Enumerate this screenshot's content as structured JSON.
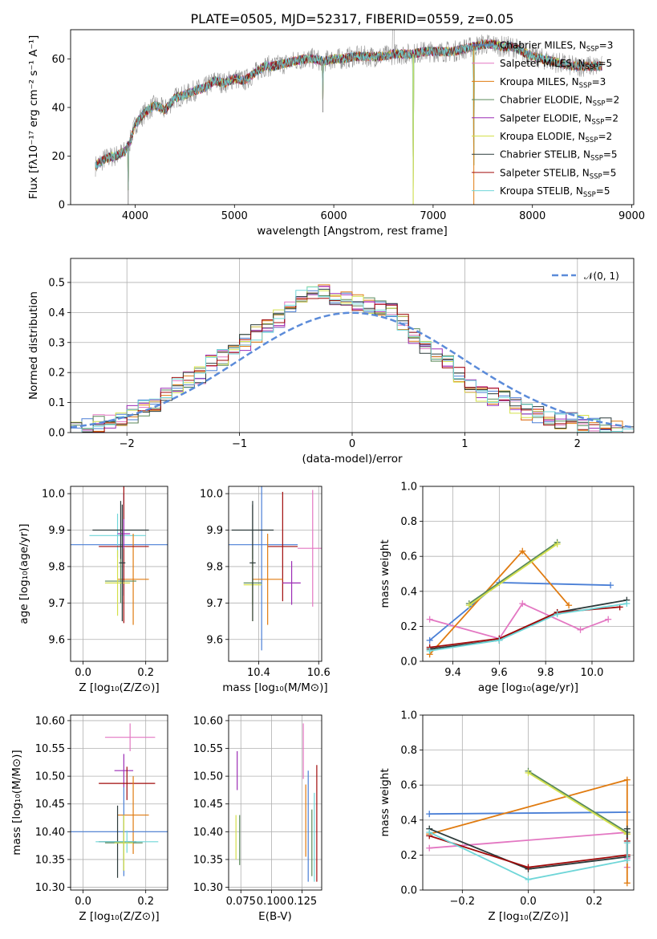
{
  "chart_data": [
    {
      "id": "spectrum",
      "type": "line",
      "title": "PLATE=0505, MJD=52317, FIBERID=0559, z=0.05",
      "xlabel": "wavelength [Angstrom, rest frame]",
      "ylabel": "Flux [fλ10⁻¹⁷ erg cm⁻² s⁻¹ A⁻¹]",
      "xlim": [
        3350,
        9020
      ],
      "ylim": [
        0,
        72
      ],
      "xticks": [
        4000,
        5000,
        6000,
        7000,
        8000,
        9000
      ],
      "yticks": [
        0,
        20,
        40,
        60
      ],
      "continuum": {
        "x": [
          3600,
          3700,
          3800,
          3900,
          3950,
          4000,
          4100,
          4200,
          4300,
          4400,
          4500,
          4600,
          4700,
          4800,
          4900,
          5000,
          5100,
          5200,
          5300,
          5400,
          5500,
          5600,
          5700,
          5800,
          5900,
          6000,
          6100,
          6200,
          6300,
          6400,
          6500,
          6600,
          6700,
          6800,
          6900,
          7000,
          7100,
          7200,
          7300,
          7400,
          7500,
          7600,
          7700,
          7800,
          7900,
          8000,
          8100,
          8200,
          8300,
          8400,
          8500,
          8600,
          8700
        ],
        "y": [
          16,
          19,
          20,
          22,
          26,
          33,
          38,
          41,
          39,
          44,
          45,
          47,
          48,
          51,
          50,
          52,
          51,
          54,
          57,
          57,
          58,
          59,
          60,
          60,
          59,
          60,
          60,
          61,
          61,
          61,
          61,
          62,
          62,
          62,
          63,
          63,
          63,
          63,
          64,
          65,
          66,
          66,
          65,
          65,
          63,
          61,
          60,
          59,
          58,
          57,
          57,
          57,
          57
        ]
      },
      "dips": [
        {
          "x": 3930,
          "y": 0
        },
        {
          "x": 5890,
          "y": 38
        },
        {
          "x": 6800,
          "y": 0
        },
        {
          "x": 7410,
          "y": 0
        }
      ],
      "series": [
        {
          "name": "Chabrier MILES, N",
          "sub": "SSP",
          "suffix": "=3",
          "color": "#4a7fd6"
        },
        {
          "name": "Salpeter MILES, N",
          "sub": "SSP",
          "suffix": "=5",
          "color": "#e377c2"
        },
        {
          "name": "Kroupa MILES, N",
          "sub": "SSP",
          "suffix": "=3",
          "color": "#e07b10"
        },
        {
          "name": "Chabrier ELODIE, N",
          "sub": "SSP",
          "suffix": "=2",
          "color": "#5a8a5a"
        },
        {
          "name": "Salpeter ELODIE, N",
          "sub": "SSP",
          "suffix": "=2",
          "color": "#9c2db5"
        },
        {
          "name": "Kroupa ELODIE, N",
          "sub": "SSP",
          "suffix": "=2",
          "color": "#d4e04a"
        },
        {
          "name": "Chabrier STELIB, N",
          "sub": "SSP",
          "suffix": "=5",
          "color": "#2d3b3b"
        },
        {
          "name": "Salpeter STELIB, N",
          "sub": "SSP",
          "suffix": "=5",
          "color": "#a00a0a"
        },
        {
          "name": "Kroupa STELIB, N",
          "sub": "SSP",
          "suffix": "=5",
          "color": "#6fd6d8"
        }
      ],
      "data_line_color": "#888888"
    },
    {
      "id": "residuals",
      "type": "histogram",
      "xlabel": "(data-model)/error",
      "ylabel": "Normed distribution",
      "xlim": [
        -2.5,
        2.5
      ],
      "ylim": [
        0,
        0.58
      ],
      "xticks": [
        -2,
        -1,
        0,
        1,
        2
      ],
      "yticks": [
        0.0,
        0.1,
        0.2,
        0.3,
        0.4,
        0.5
      ],
      "bins": [
        -2.5,
        -2.4,
        -2.3,
        -2.2,
        -2.1,
        -2.0,
        -1.9,
        -1.8,
        -1.7,
        -1.6,
        -1.5,
        -1.4,
        -1.3,
        -1.2,
        -1.1,
        -1.0,
        -0.9,
        -0.8,
        -0.7,
        -0.6,
        -0.5,
        -0.4,
        -0.3,
        -0.2,
        -0.1,
        0.0,
        0.1,
        0.2,
        0.3,
        0.4,
        0.5,
        0.6,
        0.7,
        0.8,
        0.9,
        1.0,
        1.1,
        1.2,
        1.3,
        1.4,
        1.5,
        1.6,
        1.7,
        1.8,
        1.9,
        2.0,
        2.1,
        2.2,
        2.3,
        2.4,
        2.5
      ],
      "base_values": [
        0.01,
        0.02,
        0.03,
        0.04,
        0.04,
        0.06,
        0.08,
        0.09,
        0.13,
        0.16,
        0.18,
        0.19,
        0.23,
        0.25,
        0.28,
        0.3,
        0.33,
        0.35,
        0.38,
        0.42,
        0.45,
        0.46,
        0.47,
        0.45,
        0.44,
        0.43,
        0.42,
        0.41,
        0.4,
        0.37,
        0.32,
        0.29,
        0.26,
        0.23,
        0.19,
        0.16,
        0.13,
        0.12,
        0.11,
        0.09,
        0.07,
        0.06,
        0.05,
        0.04,
        0.04,
        0.03,
        0.02,
        0.02,
        0.01,
        0.01
      ],
      "gaussian": {
        "label": "𝒩(0, 1)",
        "color": "#5b8bd9",
        "mu": 0,
        "sigma": 1
      }
    },
    {
      "id": "age-vs-Z",
      "type": "errorbar",
      "xlabel": "Z [log₁₀(Z/Z⊙)]",
      "ylabel": "age  [log₁₀(age/yr)]",
      "xlim": [
        -0.04,
        0.27
      ],
      "ylim": [
        9.54,
        10.02
      ],
      "xticks": [
        0.0,
        0.2
      ],
      "yticks": [
        9.6,
        9.7,
        9.8,
        9.9,
        10.0
      ],
      "points": [
        {
          "x": 0.13,
          "xerr": 0.17,
          "y": 9.86,
          "yerr": 0.14,
          "color": "#4a7fd6"
        },
        {
          "x": 0.11,
          "xerr": 0.09,
          "y": 9.885,
          "yerr": 0.06,
          "color": "#6fd6d8"
        },
        {
          "x": 0.16,
          "xerr": 0.05,
          "y": 9.765,
          "yerr": 0.125,
          "color": "#e07b10"
        },
        {
          "x": 0.13,
          "xerr": 0.08,
          "y": 9.855,
          "yerr": 0.21,
          "color": "#a00a0a"
        },
        {
          "x": 0.12,
          "xerr": 0.09,
          "y": 9.9,
          "yerr": 0.08,
          "color": "#2d3b3b"
        },
        {
          "x": 0.13,
          "xerr": 0.02,
          "y": 9.89,
          "yerr": 0.04,
          "color": "#9c2db5"
        },
        {
          "x": 0.12,
          "xerr": 0.05,
          "y": 9.76,
          "yerr": 0.06,
          "color": "#5a8a5a"
        },
        {
          "x": 0.11,
          "xerr": 0.04,
          "y": 9.755,
          "yerr": 0.09,
          "color": "#d4e04a"
        },
        {
          "x": 0.125,
          "xerr": 0.01,
          "y": 9.81,
          "yerr": 0.16,
          "color": "#2d3b3b"
        }
      ]
    },
    {
      "id": "age-vs-mass",
      "type": "errorbar",
      "xlabel": "mass [log₁₀(M/M⊙)]",
      "xlim": [
        10.3,
        10.61
      ],
      "ylim": [
        9.54,
        10.02
      ],
      "xticks": [
        10.4,
        10.6
      ],
      "yticks": [
        9.6,
        9.7,
        9.8,
        9.9,
        10.0
      ],
      "points": [
        {
          "x": 10.41,
          "xerr": 0.12,
          "y": 9.86,
          "yerr": 0.29,
          "color": "#4a7fd6"
        },
        {
          "x": 10.38,
          "xerr": 0.07,
          "y": 9.9,
          "yerr": 0.08,
          "color": "#2d3b3b"
        },
        {
          "x": 10.48,
          "xerr": 0.05,
          "y": 9.855,
          "yerr": 0.15,
          "color": "#a00a0a"
        },
        {
          "x": 10.58,
          "xerr": 0.05,
          "y": 9.85,
          "yerr": 0.16,
          "color": "#e377c2"
        },
        {
          "x": 10.43,
          "xerr": 0.05,
          "y": 9.765,
          "yerr": 0.125,
          "color": "#e07b10"
        },
        {
          "x": 10.51,
          "xerr": 0.03,
          "y": 9.755,
          "yerr": 0.06,
          "color": "#9c2db5"
        },
        {
          "x": 10.38,
          "xerr": 0.03,
          "y": 9.755,
          "yerr": 0.06,
          "color": "#5a8a5a"
        },
        {
          "x": 10.38,
          "xerr": 0.03,
          "y": 9.75,
          "yerr": 0.1,
          "color": "#d4e04a"
        },
        {
          "x": 10.38,
          "xerr": 0.01,
          "y": 9.81,
          "yerr": 0.16,
          "color": "#2d3b3b"
        }
      ]
    },
    {
      "id": "weight-vs-age",
      "type": "line",
      "xlabel": "age  [log₁₀(age/yr)]",
      "ylabel": "mass weight",
      "xlim": [
        9.27,
        10.18
      ],
      "ylim": [
        0,
        1.0
      ],
      "xticks": [
        9.4,
        9.6,
        9.8,
        10.0
      ],
      "yticks": [
        0.0,
        0.2,
        0.4,
        0.6,
        0.8,
        1.0
      ],
      "series": [
        {
          "x": [
            9.3,
            9.6,
            10.08
          ],
          "y": [
            0.12,
            0.45,
            0.435
          ],
          "color": "#4a7fd6"
        },
        {
          "x": [
            9.3,
            9.6,
            9.7,
            9.95,
            10.07
          ],
          "y": [
            0.24,
            0.13,
            0.33,
            0.18,
            0.24
          ],
          "color": "#e377c2"
        },
        {
          "x": [
            9.3,
            9.7,
            9.9
          ],
          "y": [
            0.04,
            0.63,
            0.32
          ],
          "color": "#e07b10"
        },
        {
          "x": [
            9.47,
            9.85
          ],
          "y": [
            0.33,
            0.68
          ],
          "color": "#5a8a5a"
        },
        {
          "x": [
            9.47,
            9.85
          ],
          "y": [
            0.32,
            0.67
          ],
          "color": "#d4e04a"
        },
        {
          "x": [
            9.3,
            9.6,
            9.85,
            10.15
          ],
          "y": [
            0.07,
            0.12,
            0.28,
            0.35
          ],
          "color": "#2d3b3b"
        },
        {
          "x": [
            9.3,
            9.6,
            9.85,
            10.12
          ],
          "y": [
            0.08,
            0.13,
            0.28,
            0.31
          ],
          "color": "#a00a0a"
        },
        {
          "x": [
            9.3,
            9.6,
            9.85,
            10.15
          ],
          "y": [
            0.06,
            0.12,
            0.27,
            0.33
          ],
          "color": "#6fd6d8"
        }
      ]
    },
    {
      "id": "mass-vs-Z",
      "type": "errorbar",
      "xlabel": "Z [log₁₀(Z/Z⊙)]",
      "ylabel": "mass [log₁₀(M/M⊙)]",
      "xlim": [
        -0.04,
        0.27
      ],
      "ylim": [
        10.295,
        10.61
      ],
      "xticks": [
        0.0,
        0.2
      ],
      "yticks": [
        10.3,
        10.35,
        10.4,
        10.45,
        10.5,
        10.55,
        10.6
      ],
      "points": [
        {
          "x": 0.15,
          "xerr": 0.08,
          "y": 10.57,
          "yerr": 0.025,
          "color": "#e377c2"
        },
        {
          "x": 0.13,
          "xerr": 0.03,
          "y": 10.51,
          "yerr": 0.03,
          "color": "#9c2db5"
        },
        {
          "x": 0.14,
          "xerr": 0.09,
          "y": 10.487,
          "yerr": 0.03,
          "color": "#a00a0a"
        },
        {
          "x": 0.16,
          "xerr": 0.05,
          "y": 10.43,
          "yerr": 0.07,
          "color": "#e07b10"
        },
        {
          "x": 0.13,
          "xerr": 0.17,
          "y": 10.4,
          "yerr": 0.08,
          "color": "#4a7fd6"
        },
        {
          "x": 0.11,
          "xerr": 0.06,
          "y": 10.382,
          "yerr": 0.065,
          "color": "#2d3b3b"
        },
        {
          "x": 0.13,
          "xerr": 0.06,
          "y": 10.38,
          "yerr": 0.05,
          "color": "#5a8a5a"
        },
        {
          "x": 0.14,
          "xerr": 0.1,
          "y": 10.382,
          "yerr": 0.02,
          "color": "#6fd6d8"
        },
        {
          "x": 0.13,
          "xerr": 0.03,
          "y": 10.38,
          "yerr": 0.05,
          "color": "#d4e04a"
        }
      ]
    },
    {
      "id": "mass-vs-EBV",
      "type": "errorbar",
      "xlabel": "E(B-V)",
      "xlim": [
        0.065,
        0.141
      ],
      "ylim": [
        10.295,
        10.61
      ],
      "xticks": [
        0.075,
        0.1,
        0.125
      ],
      "ticklabels": [
        "0.075",
        "0.100",
        "0.125"
      ],
      "yticks": [
        10.3,
        10.35,
        10.4,
        10.45,
        10.5,
        10.55,
        10.6
      ],
      "points": [
        {
          "x": 0.072,
          "y": 10.51,
          "yerr": 0.035,
          "color": "#9c2db5"
        },
        {
          "x": 0.071,
          "y": 10.39,
          "yerr": 0.04,
          "color": "#d4e04a"
        },
        {
          "x": 0.074,
          "y": 10.385,
          "yerr": 0.045,
          "color": "#5a8a5a"
        },
        {
          "x": 0.126,
          "y": 10.545,
          "yerr": 0.05,
          "color": "#e377c2"
        },
        {
          "x": 0.128,
          "y": 10.42,
          "yerr": 0.065,
          "color": "#e07b10"
        },
        {
          "x": 0.13,
          "y": 10.41,
          "yerr": 0.1,
          "color": "#4a7fd6"
        },
        {
          "x": 0.133,
          "y": 10.38,
          "yerr": 0.06,
          "color": "#5a8a5a"
        },
        {
          "x": 0.135,
          "y": 10.39,
          "yerr": 0.08,
          "color": "#6fd6d8"
        },
        {
          "x": 0.137,
          "y": 10.415,
          "yerr": 0.105,
          "color": "#a00a0a"
        }
      ]
    },
    {
      "id": "weight-vs-Z",
      "type": "line",
      "xlabel": "Z [log₁₀(Z/Z⊙)]",
      "ylabel": "mass weight",
      "xlim": [
        -0.32,
        0.32
      ],
      "ylim": [
        0,
        1.0
      ],
      "xticks": [
        -0.2,
        0.0,
        0.2
      ],
      "yticks": [
        0.0,
        0.2,
        0.4,
        0.6,
        0.8,
        1.0
      ],
      "series": [
        {
          "x": [
            -0.3,
            0.3
          ],
          "y": [
            0.435,
            0.445
          ],
          "color": "#4a7fd6"
        },
        {
          "x": [
            -0.3,
            0.3,
            0.3,
            0.3
          ],
          "y": [
            0.24,
            0.33,
            0.13,
            0.18
          ],
          "color": "#e377c2"
        },
        {
          "x": [
            -0.3,
            0.3,
            0.3,
            0.3
          ],
          "y": [
            0.32,
            0.63,
            0.04,
            0.32
          ],
          "color": "#e07b10"
        },
        {
          "x": [
            0.0,
            0.3
          ],
          "y": [
            0.68,
            0.33
          ],
          "color": "#5a8a5a"
        },
        {
          "x": [
            0.0,
            0.3
          ],
          "y": [
            0.67,
            0.32
          ],
          "color": "#d4e04a"
        },
        {
          "x": [
            -0.3,
            0.0,
            0.3,
            0.3
          ],
          "y": [
            0.35,
            0.12,
            0.19,
            0.35
          ],
          "color": "#2d3b3b"
        },
        {
          "x": [
            -0.3,
            0.0,
            0.3,
            0.3
          ],
          "y": [
            0.31,
            0.13,
            0.2,
            0.28
          ],
          "color": "#a00a0a"
        },
        {
          "x": [
            -0.3,
            0.0,
            0.3,
            0.3
          ],
          "y": [
            0.33,
            0.06,
            0.17,
            0.27
          ],
          "color": "#6fd6d8"
        }
      ]
    }
  ]
}
